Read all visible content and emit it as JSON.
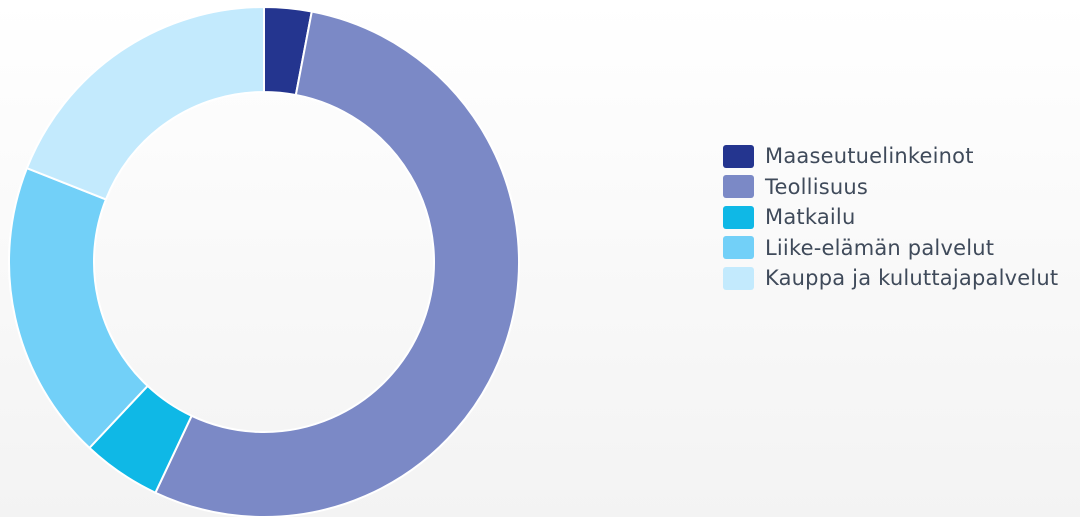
{
  "chart_data": {
    "type": "pie",
    "variant": "donut",
    "categories": [
      "Maaseutuelinkeinot",
      "Teollisuus",
      "Matkailu",
      "Liike-elämän palvelut",
      "Kauppa ja kuluttajapalvelut"
    ],
    "values": [
      3,
      54,
      5,
      19,
      19
    ],
    "colors": [
      "#24358f",
      "#7b89c6",
      "#0fb8e6",
      "#72d0f8",
      "#c3eafd"
    ],
    "title": "",
    "legend_position": "right"
  },
  "legend": {
    "items": [
      {
        "label": "Maaseutuelinkeinot",
        "color": "#24358f"
      },
      {
        "label": "Teollisuus",
        "color": "#7b89c6"
      },
      {
        "label": "Matkailu",
        "color": "#0fb8e6"
      },
      {
        "label": "Liike-elämän palvelut",
        "color": "#72d0f8"
      },
      {
        "label": "Kauppa ja kuluttajapalvelut",
        "color": "#c3eafd"
      }
    ]
  }
}
